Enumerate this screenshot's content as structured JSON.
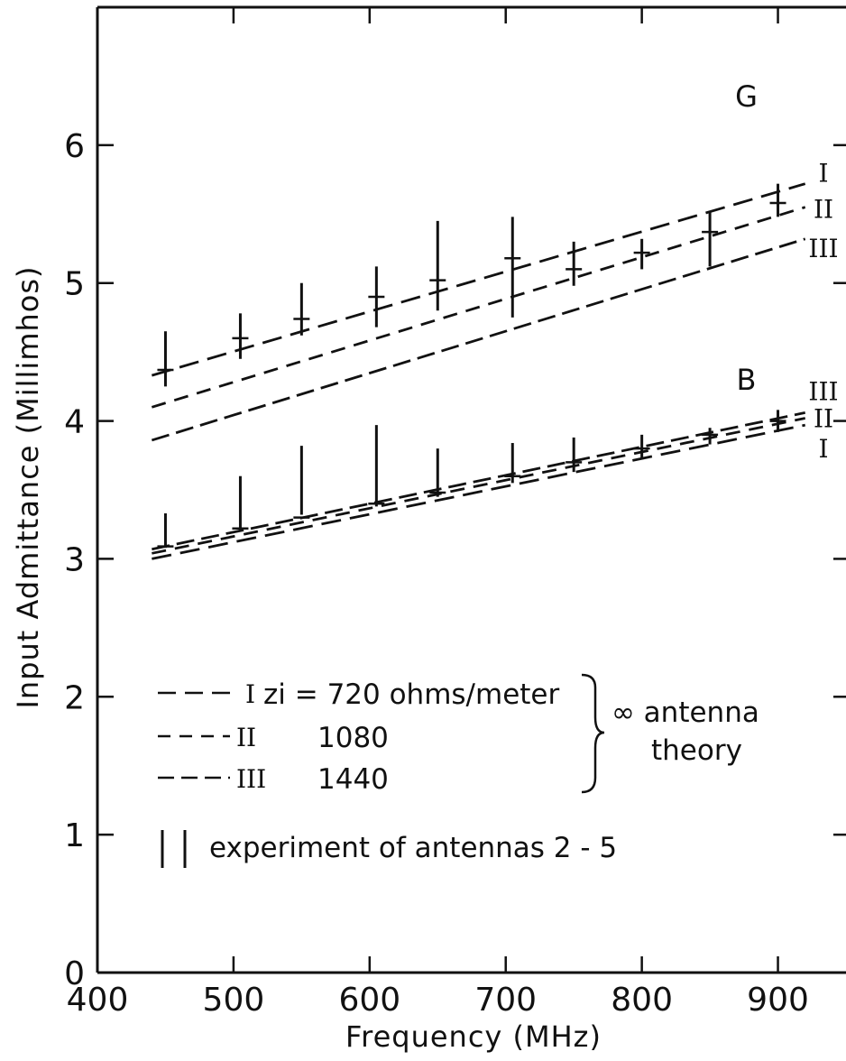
{
  "chart_data": {
    "type": "line",
    "xlabel": "Frequency (MHz)",
    "ylabel": "Input Admittance (Millimhos)",
    "xlim": [
      400,
      950
    ],
    "ylim": [
      0,
      7
    ],
    "x_ticks": [
      "400",
      "500",
      "600",
      "700",
      "800",
      "900"
    ],
    "y_ticks": [
      "0",
      "1",
      "2",
      "3",
      "4",
      "5",
      "6"
    ],
    "grid": false,
    "panel_labels": {
      "G": "G",
      "B": "B"
    },
    "series_tags": {
      "I": "I",
      "II": "II",
      "III": "III"
    },
    "series": [
      {
        "id": "G-I",
        "group": "G",
        "curve": "I",
        "x": [
          440,
          920
        ],
        "values": [
          4.33,
          5.72
        ]
      },
      {
        "id": "G-II",
        "group": "G",
        "curve": "II",
        "x": [
          440,
          920
        ],
        "values": [
          4.1,
          5.55
        ]
      },
      {
        "id": "G-III",
        "group": "G",
        "curve": "III",
        "x": [
          440,
          920
        ],
        "values": [
          3.86,
          5.32
        ]
      },
      {
        "id": "B-I",
        "group": "B",
        "curve": "I",
        "x": [
          440,
          920
        ],
        "values": [
          3.0,
          3.97
        ]
      },
      {
        "id": "B-II",
        "group": "B",
        "curve": "II",
        "x": [
          440,
          920
        ],
        "values": [
          3.04,
          4.02
        ]
      },
      {
        "id": "B-III",
        "group": "B",
        "curve": "III",
        "x": [
          440,
          920
        ],
        "values": [
          3.07,
          4.06
        ]
      }
    ],
    "experiment": {
      "G": [
        {
          "x": 450,
          "low": 4.25,
          "high": 4.65,
          "mark": 4.37
        },
        {
          "x": 505,
          "low": 4.45,
          "high": 4.78,
          "mark": 4.6
        },
        {
          "x": 550,
          "low": 4.62,
          "high": 5.0,
          "mark": 4.74
        },
        {
          "x": 605,
          "low": 4.68,
          "high": 5.12,
          "mark": 4.9
        },
        {
          "x": 650,
          "low": 4.8,
          "high": 5.45,
          "mark": 5.02
        },
        {
          "x": 705,
          "low": 4.75,
          "high": 5.48,
          "mark": 5.18
        },
        {
          "x": 750,
          "low": 4.98,
          "high": 5.3,
          "mark": 5.1
        },
        {
          "x": 800,
          "low": 5.1,
          "high": 5.32,
          "mark": 5.22
        },
        {
          "x": 850,
          "low": 5.12,
          "high": 5.52,
          "mark": 5.37
        },
        {
          "x": 900,
          "low": 5.48,
          "high": 5.72,
          "mark": 5.58
        }
      ],
      "B": [
        {
          "x": 450,
          "low": 3.08,
          "high": 3.33,
          "mark": 3.09
        },
        {
          "x": 505,
          "low": 3.2,
          "high": 3.6,
          "mark": 3.22
        },
        {
          "x": 550,
          "low": 3.32,
          "high": 3.82,
          "mark": 3.3
        },
        {
          "x": 605,
          "low": 3.38,
          "high": 3.97,
          "mark": 3.4
        },
        {
          "x": 650,
          "low": 3.45,
          "high": 3.8,
          "mark": 3.48
        },
        {
          "x": 705,
          "low": 3.55,
          "high": 3.84,
          "mark": 3.6
        },
        {
          "x": 750,
          "low": 3.63,
          "high": 3.88,
          "mark": 3.7
        },
        {
          "x": 800,
          "low": 3.72,
          "high": 3.9,
          "mark": 3.8
        },
        {
          "x": 850,
          "low": 3.83,
          "high": 3.95,
          "mark": 3.9
        },
        {
          "x": 900,
          "low": 3.92,
          "high": 4.08,
          "mark": 4.0
        }
      ]
    },
    "legend": {
      "entries": [
        {
          "tag": "I",
          "text": "zi = 720 ohms/meter"
        },
        {
          "tag": "II",
          "text": "1080"
        },
        {
          "tag": "III",
          "text": "1440"
        }
      ],
      "group_label_1": "∞ antenna",
      "group_label_2": "theory",
      "experiment_text": "experiment of antennas 2 - 5"
    }
  }
}
